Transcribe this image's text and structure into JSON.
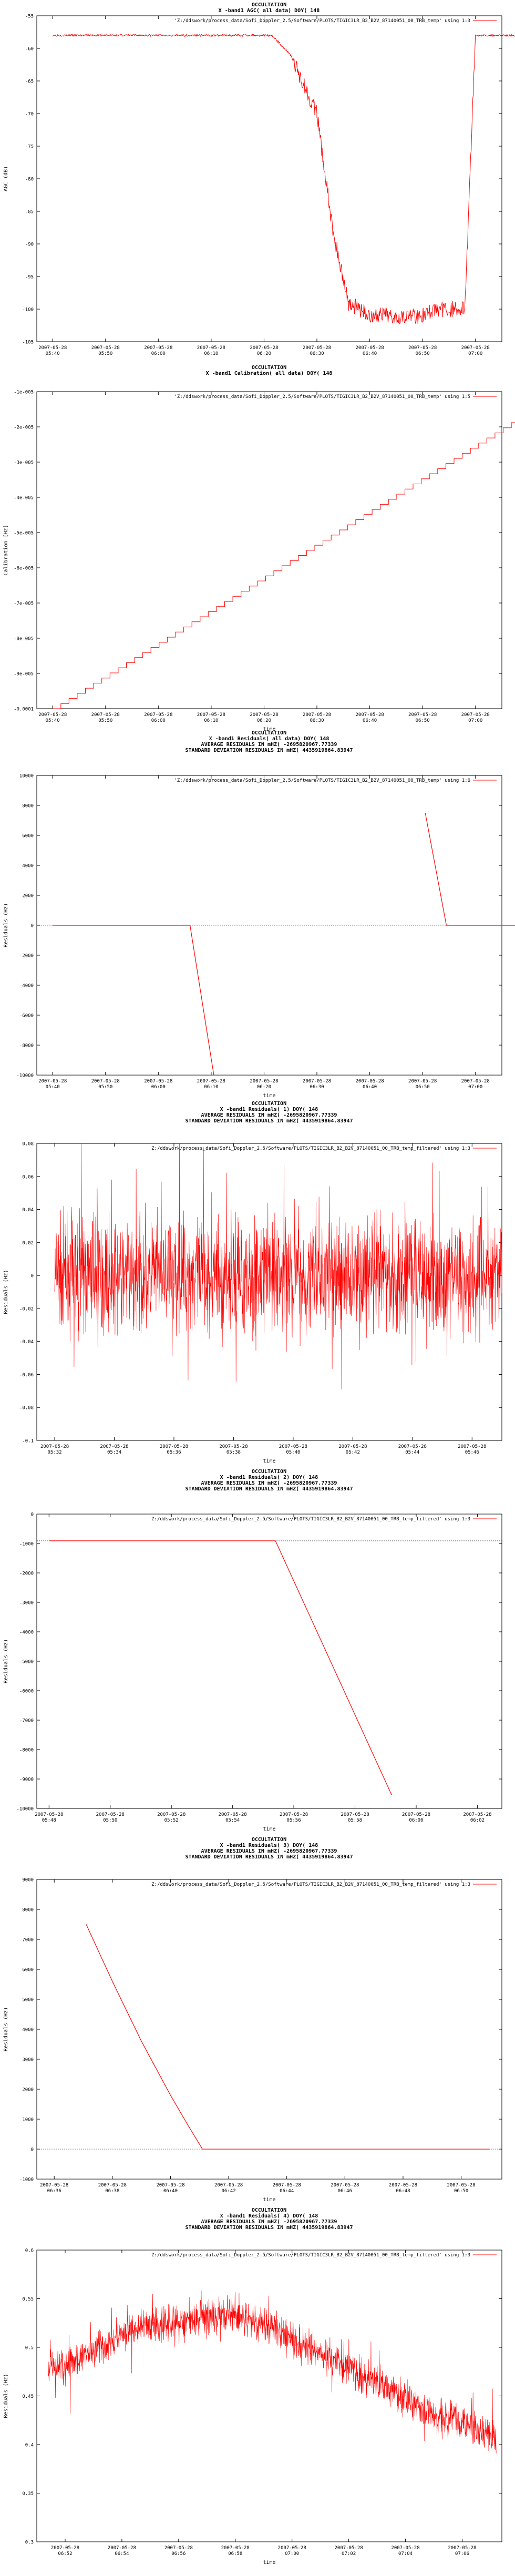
{
  "chart_data": [
    {
      "type": "line",
      "title_lines": [
        "OCCULTATION",
        "X -band1 AGC( all data) DOY( 148"
      ],
      "legend": "'Z:/ddswork/process_data/Sofi_Doppler_2.5/Software/PLOTS/TIGIC3LR_B2_B2V_87140051_00_TRB_temp' using 1:3",
      "ylabel": "AGC (dB)",
      "xlabel": "",
      "ylim": [
        -105,
        -55
      ],
      "yticks": [
        "-55",
        "-60",
        "-65",
        "-70",
        "-75",
        "-80",
        "-85",
        "-90",
        "-95",
        "-100",
        "-105"
      ],
      "xticks": [
        "2007-05-28 05:40",
        "2007-05-28 05:50",
        "2007-05-28 06:00",
        "2007-05-28 06:10",
        "2007-05-28 06:20",
        "2007-05-28 06:30",
        "2007-05-28 06:40",
        "2007-05-28 06:50",
        "2007-05-28 07:00"
      ],
      "series_kind": "agc",
      "x": [
        0,
        4.1,
        4.15,
        4.5,
        5.0,
        5.3,
        5.6,
        6.0,
        7.0,
        7.25,
        7.6,
        7.8,
        8.0,
        8.05,
        8.6,
        9.0
      ],
      "y": [
        -58,
        -58,
        -58,
        -61,
        -70,
        -88,
        -99,
        -101,
        -101,
        -100,
        -100,
        -100,
        -58,
        -58,
        -58,
        -58
      ]
    },
    {
      "type": "line",
      "title_lines": [
        "OCCULTATION",
        "X -band1 Calibration( all data) DOY( 148"
      ],
      "legend": "'Z:/ddswork/process_data/Sofi_Doppler_2.5/Software/PLOTS/TIGIC3LR_B2_B2V_87140051_00_TRB_temp' using 1:5",
      "ylabel": "Calibration [Hz]",
      "xlabel": "time",
      "ylim": [
        -0.0001,
        -1e-05
      ],
      "yticks": [
        "-1e-005",
        "-2e-005",
        "-3e-005",
        "-4e-005",
        "-5e-005",
        "-6e-005",
        "-7e-005",
        "-8e-005",
        "-9e-005",
        "-0.0001"
      ],
      "xticks": [
        "2007-05-28 05:40",
        "2007-05-28 05:50",
        "2007-05-28 06:00",
        "2007-05-28 06:10",
        "2007-05-28 06:20",
        "2007-05-28 06:30",
        "2007-05-28 06:40",
        "2007-05-28 06:50",
        "2007-05-28 07:00"
      ],
      "series_kind": "steps",
      "x": [
        0,
        9.3
      ],
      "y": [
        -0.0001,
        -1.3e-05
      ]
    },
    {
      "type": "line",
      "title_lines": [
        "OCCULTATION",
        "X -band1 Residuals( all data) DOY( 148",
        "AVERAGE RESIDUALS IN mHZ( -2695820967.77339",
        "STANDARD DEVIATION RESIDUALS IN mHZ( 4435919864.83947"
      ],
      "legend": "'Z:/ddswork/process_data/Sofi_Doppler_2.5/Software/PLOTS/TIGIC3LR_B2_B2V_87140051_00_TRB_temp' using 1:6",
      "ylabel": "Residuals (Hz)",
      "xlabel": "time",
      "ylim": [
        -10000,
        10000
      ],
      "yticks": [
        "10000",
        "8000",
        "6000",
        "4000",
        "2000",
        "0",
        "-2000",
        "-4000",
        "-6000",
        "-8000",
        "-10000"
      ],
      "xticks": [
        "2007-05-28 05:40",
        "2007-05-28 05:50",
        "2007-05-28 06:00",
        "2007-05-28 06:10",
        "2007-05-28 06:20",
        "2007-05-28 06:30",
        "2007-05-28 06:40",
        "2007-05-28 06:50",
        "2007-05-28 07:00"
      ],
      "series_kind": "segments",
      "segments": [
        {
          "x": [
            0,
            2.6,
            3.05
          ],
          "y": [
            0,
            0,
            -10000
          ]
        },
        {
          "x": [
            7.05,
            7.45,
            9.3
          ],
          "y": [
            7500,
            0,
            0
          ]
        }
      ]
    },
    {
      "type": "line",
      "title_lines": [
        "OCCULTATION",
        "X -band1 Residuals( 1) DOY( 148",
        "AVERAGE RESIDUALS IN mHZ( -2695820967.77339",
        "STANDARD DEVIATION RESIDUALS IN mHZ( 4435919864.83947"
      ],
      "legend": "'Z:/ddswork/process_data/Sofi_Doppler_2.5/Software/PLOTS/TIGIC3LR_B2_B2V_87140051_00_TRB_temp_filtered' using 1:3",
      "ylabel": "Residuals (Hz)",
      "xlabel": "time",
      "ylim": [
        -0.1,
        0.08
      ],
      "yticks": [
        "0.08",
        "0.06",
        "0.04",
        "0.02",
        "0",
        "-0.02",
        "-0.04",
        "-0.06",
        "-0.08",
        "-0.1"
      ],
      "xticks": [
        "2007-05-28 05:32",
        "2007-05-28 05:34",
        "2007-05-28 05:36",
        "2007-05-28 05:38",
        "2007-05-28 05:40",
        "2007-05-28 05:42",
        "2007-05-28 05:44",
        "2007-05-28 05:46"
      ],
      "series_kind": "noise",
      "noise": {
        "center": 0,
        "amplitude": 0.085,
        "spread": 0.02,
        "seed": 7
      },
      "x": [
        0,
        7.5
      ]
    },
    {
      "type": "line",
      "title_lines": [
        "OCCULTATION",
        "X -band1 Residuals( 2) DOY( 148",
        "AVERAGE RESIDUALS IN mHZ( -2695820967.77339",
        "STANDARD DEVIATION RESIDUALS IN mHZ( 4435919864.83947"
      ],
      "legend": "'Z:/ddswork/process_data/Sofi_Doppler_2.5/Software/PLOTS/TIGIC3LR_B2_B2V_87140051_00_TRB_temp_filtered' using 1:3",
      "ylabel": "Residuals (Hz)",
      "xlabel": "time",
      "ylim": [
        -10000,
        1000
      ],
      "yticks": [
        "0",
        "-1000",
        "-2000",
        "-3000",
        "-4000",
        "-5000",
        "-6000",
        "-7000",
        "-8000",
        "-9000",
        "-10000"
      ],
      "xticks": [
        "2007-05-28 05:48",
        "2007-05-28 05:50",
        "2007-05-28 05:52",
        "2007-05-28 05:54",
        "2007-05-28 05:56",
        "2007-05-28 05:58",
        "2007-05-28 06:00",
        "2007-05-28 06:02"
      ],
      "series_kind": "segments",
      "segments": [
        {
          "x": [
            0,
            3.7,
            5.6
          ],
          "y": [
            0,
            0,
            -9500
          ]
        }
      ],
      "xspan": [
        -0.2,
        7.4
      ]
    },
    {
      "type": "line",
      "title_lines": [
        "OCCULTATION",
        "X -band1 Residuals( 3) DOY( 148",
        "AVERAGE RESIDUALS IN mHZ( -2695820967.77339",
        "STANDARD DEVIATION RESIDUALS IN mHZ( 4435919864.83947"
      ],
      "legend": "'Z:/ddswork/process_data/Sofi_Doppler_2.5/Software/PLOTS/TIGIC3LR_B2_B2V_87140051_00_TRB_temp_filtered' using 1:3",
      "ylabel": "Residuals (Hz)",
      "xlabel": "time",
      "ylim": [
        -1000,
        9000
      ],
      "yticks": [
        "9000",
        "8000",
        "7000",
        "6000",
        "5000",
        "4000",
        "3000",
        "2000",
        "1000",
        "0",
        "-1000"
      ],
      "xticks": [
        "2007-05-28 06:36",
        "2007-05-28 06:38",
        "2007-05-28 06:40",
        "2007-05-28 06:42",
        "2007-05-28 06:44",
        "2007-05-28 06:46",
        "2007-05-28 06:48",
        "2007-05-28 06:50"
      ],
      "series_kind": "curve",
      "x": [
        0.55,
        1.0,
        1.5,
        2.0,
        2.3,
        2.55,
        3.0,
        4.0,
        5.0,
        6.0,
        7.0,
        7.5
      ],
      "y": [
        7500,
        5600,
        3600,
        1800,
        800,
        0,
        0,
        0,
        0,
        0,
        0,
        0
      ],
      "xspan": [
        -0.3,
        7.7
      ]
    },
    {
      "type": "line",
      "title_lines": [
        "OCCULTATION",
        "X -band1 Residuals( 4) DOY( 148",
        "AVERAGE RESIDUALS IN mHZ( -2695820967.77339",
        "STANDARD DEVIATION RESIDUALS IN mHZ( 4435919864.83947"
      ],
      "legend": "'Z:/ddswork/process_data/Sofi_Doppler_2.5/Software/PLOTS/TIGIC3LR_B2_B2V_87140051_00_TRB_temp_filtered' using 1:3",
      "ylabel": "Residuals (Hz)",
      "xlabel": "time",
      "ylim": [
        0.3,
        0.6
      ],
      "yticks": [
        "0.6",
        "0.55",
        "0.5",
        "0.45",
        "0.4",
        "0.35",
        "0.3"
      ],
      "xticks": [
        "2007-05-28 06:52",
        "2007-05-28 06:54",
        "2007-05-28 06:56",
        "2007-05-28 06:58",
        "2007-05-28 07:00",
        "2007-05-28 07:02",
        "2007-05-28 07:04",
        "2007-05-28 07:06"
      ],
      "series_kind": "noise",
      "noise": {
        "trend": [
          [
            0,
            0.48
          ],
          [
            1.2,
            0.52
          ],
          [
            3.0,
            0.535
          ],
          [
            5.0,
            0.48
          ],
          [
            6.5,
            0.43
          ],
          [
            7.6,
            0.41
          ]
        ],
        "amplitude": 0.045,
        "spread": 0.012,
        "seed": 11
      },
      "x": [
        -0.3,
        7.6
      ],
      "xspan": [
        -0.5,
        7.7
      ]
    }
  ],
  "colors": {
    "series": "#ff0000",
    "axis": "#000000",
    "background": "#ffffff"
  }
}
